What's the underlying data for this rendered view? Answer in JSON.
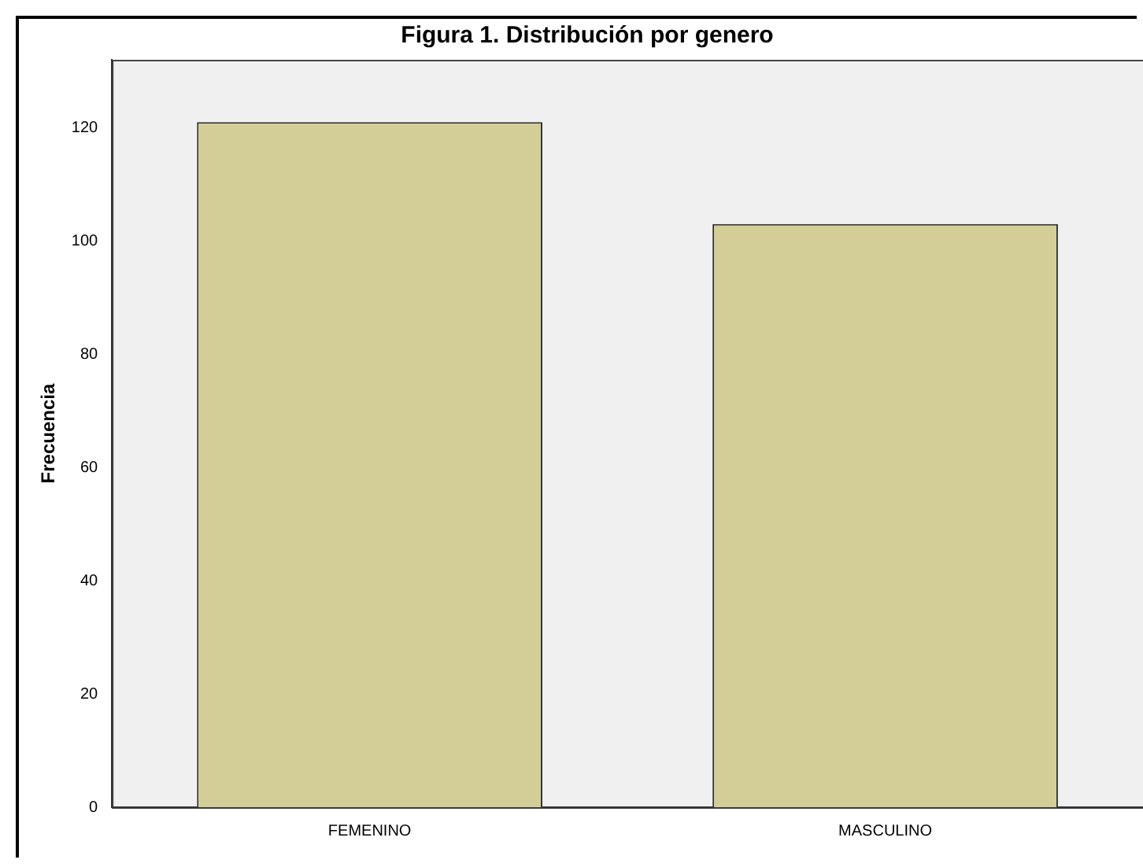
{
  "chart_data": {
    "type": "bar",
    "title": "Figura 1. Distribución por genero",
    "ylabel": "Frecuencia",
    "categories": [
      "FEMENINO",
      "MASCULINO"
    ],
    "values": [
      121,
      103
    ],
    "color": "#d3ce97",
    "ylim": [
      0,
      132
    ],
    "yticks": [
      0,
      20,
      40,
      60,
      80,
      100,
      120
    ],
    "grid": false,
    "legend": false
  }
}
